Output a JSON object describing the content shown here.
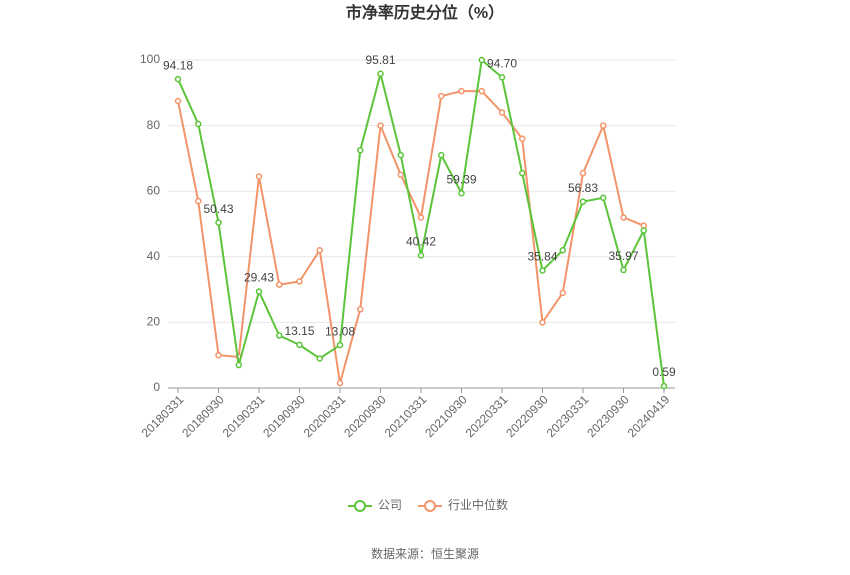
{
  "chart_data": {
    "type": "line",
    "title": "市净率历史分位（%）",
    "source": "数据来源：恒生聚源",
    "categories": [
      "20180331",
      null,
      "20180930",
      null,
      "20190331",
      null,
      "20190930",
      null,
      "20200331",
      null,
      "20200930",
      null,
      "20210331",
      null,
      "20210930",
      null,
      "20220331",
      null,
      "20220930",
      null,
      "20230331",
      null,
      "20230930",
      null,
      "20240419"
    ],
    "series": [
      {
        "name": "公司",
        "color": "#5cc43a",
        "values": [
          94.18,
          80.5,
          50.43,
          7,
          29.43,
          16,
          13.15,
          9,
          13.08,
          72.5,
          95.81,
          71,
          40.42,
          71,
          59.39,
          100,
          94.7,
          65.5,
          35.84,
          42,
          56.83,
          58,
          35.97,
          48,
          0.59
        ],
        "value_labels": [
          "94.18",
          null,
          "50.43",
          null,
          "29.43",
          null,
          "13.15",
          null,
          "13.08",
          null,
          "95.81",
          null,
          "40.42",
          null,
          "59.39",
          null,
          "94.70",
          null,
          "35.84",
          null,
          "56.83",
          null,
          "35.97",
          null,
          "0.59"
        ]
      },
      {
        "name": "行业中位数",
        "color": "#f2946a",
        "values": [
          87.5,
          57,
          10,
          9.5,
          64.5,
          31.5,
          32.5,
          42,
          1.5,
          24,
          80,
          65,
          52,
          89,
          90.5,
          90.5,
          84,
          76,
          20,
          29,
          65.5,
          80,
          52,
          49.5,
          null
        ]
      }
    ],
    "ylim": [
      0,
      100
    ],
    "yticks": [
      0,
      20,
      40,
      60,
      80,
      100
    ],
    "grid": true
  }
}
